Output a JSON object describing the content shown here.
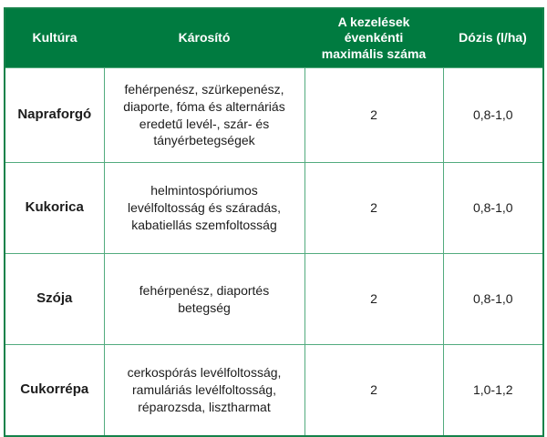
{
  "header": {
    "kultura": "Kultúra",
    "karosito": "Károsító",
    "max_treatments": "A kezelések évenkénti maximális száma",
    "dozis": "Dózis (l/ha)"
  },
  "rows": [
    {
      "kultura": "Napraforgó",
      "karosito": "fehérpenész, szürkepenész, diaporte, fóma és alternáriás eredetű levél-, szár- és tányérbetegségek",
      "max_treatments": "2",
      "dozis": "0,8-1,0"
    },
    {
      "kultura": "Kukorica",
      "karosito": "helmintospóriumos levélfoltosság és száradás, kabatiellás szemfoltosság",
      "max_treatments": "2",
      "dozis": "0,8-1,0"
    },
    {
      "kultura": "Szója",
      "karosito": "fehérpenész, diaportés betegség",
      "max_treatments": "2",
      "dozis": "0,8-1,0"
    },
    {
      "kultura": "Cukorrépa",
      "karosito": "cerkospórás levélfoltosság, ramuláriás levélfoltosság, réparozsda, lisztharmat",
      "max_treatments": "2",
      "dozis": "1,0-1,2"
    }
  ],
  "colors": {
    "header_bg": "#007b40",
    "header_text": "#ffffff",
    "outer_border": "#15824a",
    "inner_grid": "#52ab7e",
    "body_text": "#1c1c1c",
    "page_bg": "#ffffff"
  }
}
